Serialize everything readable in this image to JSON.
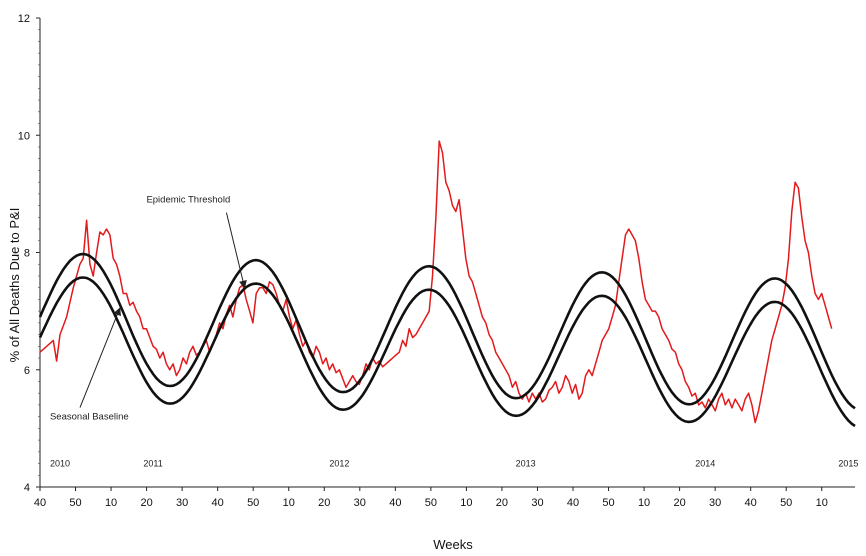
{
  "chart_data": {
    "type": "line",
    "xlabel": "Weeks",
    "ylabel": "% of All Deaths Due to P&I",
    "ylim": [
      4,
      12
    ],
    "y_ticks": [
      "4",
      "6",
      "8",
      "10",
      "12"
    ],
    "x_ticks": [
      "40",
      "50",
      "10",
      "20",
      "30",
      "40",
      "50",
      "10",
      "20",
      "30",
      "40",
      "50",
      "10",
      "20",
      "30",
      "40",
      "50",
      "10",
      "20",
      "30",
      "40",
      "50",
      "10"
    ],
    "x_range": [
      0,
      245
    ],
    "year_labels": [
      {
        "label": "2010",
        "x": 6
      },
      {
        "label": "2011",
        "x": 34
      },
      {
        "label": "2012",
        "x": 90
      },
      {
        "label": "2013",
        "x": 146
      },
      {
        "label": "2014",
        "x": 200
      },
      {
        "label": "2015",
        "x": 243
      }
    ],
    "annotations": [
      {
        "text": "Epidemic Threshold",
        "x": 32,
        "y": 8.85,
        "arrow_to": [
          61.5,
          7.4
        ]
      },
      {
        "text": "Seasonal Baseline",
        "x": 3,
        "y": 5.15,
        "arrow_to": [
          24,
          7.05
        ]
      }
    ],
    "series": [
      {
        "role": "observed",
        "color": "#e31a1c",
        "points": [
          [
            0,
            6.3
          ],
          [
            2,
            6.4
          ],
          [
            4,
            6.5
          ],
          [
            5,
            6.15
          ],
          [
            6,
            6.6
          ],
          [
            8,
            6.9
          ],
          [
            10,
            7.4
          ],
          [
            12,
            7.8
          ],
          [
            13,
            7.9
          ],
          [
            14,
            8.55
          ],
          [
            15,
            7.8
          ],
          [
            16,
            7.6
          ],
          [
            17,
            8.0
          ],
          [
            18,
            8.35
          ],
          [
            19,
            8.3
          ],
          [
            20,
            8.4
          ],
          [
            21,
            8.3
          ],
          [
            22,
            7.9
          ],
          [
            23,
            7.8
          ],
          [
            24,
            7.6
          ],
          [
            25,
            7.3
          ],
          [
            26,
            7.3
          ],
          [
            27,
            7.1
          ],
          [
            28,
            7.15
          ],
          [
            29,
            7.0
          ],
          [
            30,
            6.9
          ],
          [
            31,
            6.7
          ],
          [
            32,
            6.7
          ],
          [
            33,
            6.55
          ],
          [
            34,
            6.4
          ],
          [
            35,
            6.35
          ],
          [
            36,
            6.2
          ],
          [
            37,
            6.3
          ],
          [
            38,
            6.1
          ],
          [
            39,
            6.0
          ],
          [
            40,
            6.1
          ],
          [
            41,
            5.9
          ],
          [
            42,
            6.0
          ],
          [
            43,
            6.2
          ],
          [
            44,
            6.1
          ],
          [
            45,
            6.3
          ],
          [
            46,
            6.4
          ],
          [
            47,
            6.25
          ],
          [
            48,
            6.3
          ],
          [
            49,
            6.4
          ],
          [
            50,
            6.5
          ],
          [
            51,
            6.3
          ],
          [
            52,
            6.45
          ],
          [
            53,
            6.6
          ],
          [
            54,
            6.8
          ],
          [
            55,
            6.7
          ],
          [
            56,
            6.95
          ],
          [
            57,
            7.1
          ],
          [
            58,
            6.9
          ],
          [
            59,
            7.2
          ],
          [
            60,
            7.4
          ],
          [
            61,
            7.45
          ],
          [
            62,
            7.2
          ],
          [
            63,
            7.0
          ],
          [
            64,
            6.8
          ],
          [
            65,
            7.3
          ],
          [
            66,
            7.4
          ],
          [
            67,
            7.4
          ],
          [
            68,
            7.3
          ],
          [
            69,
            7.5
          ],
          [
            70,
            7.45
          ],
          [
            71,
            7.3
          ],
          [
            72,
            7.1
          ],
          [
            73,
            7.0
          ],
          [
            74,
            7.2
          ],
          [
            75,
            6.9
          ],
          [
            76,
            6.7
          ],
          [
            77,
            6.85
          ],
          [
            78,
            6.6
          ],
          [
            79,
            6.4
          ],
          [
            80,
            6.5
          ],
          [
            81,
            6.3
          ],
          [
            82,
            6.2
          ],
          [
            83,
            6.4
          ],
          [
            84,
            6.3
          ],
          [
            85,
            6.1
          ],
          [
            86,
            6.2
          ],
          [
            87,
            6.0
          ],
          [
            88,
            6.1
          ],
          [
            89,
            5.95
          ],
          [
            90,
            6.0
          ],
          [
            91,
            5.85
          ],
          [
            92,
            5.7
          ],
          [
            93,
            5.8
          ],
          [
            94,
            5.9
          ],
          [
            95,
            5.8
          ],
          [
            96,
            5.75
          ],
          [
            97,
            5.9
          ],
          [
            98,
            6.1
          ],
          [
            99,
            6.0
          ],
          [
            100,
            6.2
          ],
          [
            101,
            6.1
          ],
          [
            102,
            6.15
          ],
          [
            103,
            6.05
          ],
          [
            104,
            6.1
          ],
          [
            105,
            6.15
          ],
          [
            106,
            6.2
          ],
          [
            107,
            6.25
          ],
          [
            108,
            6.3
          ],
          [
            109,
            6.5
          ],
          [
            110,
            6.4
          ],
          [
            111,
            6.7
          ],
          [
            112,
            6.55
          ],
          [
            113,
            6.6
          ],
          [
            114,
            6.7
          ],
          [
            115,
            6.8
          ],
          [
            116,
            6.9
          ],
          [
            117,
            7.0
          ],
          [
            118,
            7.6
          ],
          [
            119,
            8.6
          ],
          [
            120,
            9.9
          ],
          [
            121,
            9.7
          ],
          [
            122,
            9.2
          ],
          [
            123,
            9.05
          ],
          [
            124,
            8.8
          ],
          [
            125,
            8.7
          ],
          [
            126,
            8.9
          ],
          [
            127,
            8.4
          ],
          [
            128,
            7.9
          ],
          [
            129,
            7.6
          ],
          [
            130,
            7.5
          ],
          [
            131,
            7.3
          ],
          [
            132,
            7.1
          ],
          [
            133,
            6.9
          ],
          [
            134,
            6.8
          ],
          [
            135,
            6.6
          ],
          [
            136,
            6.5
          ],
          [
            137,
            6.3
          ],
          [
            138,
            6.2
          ],
          [
            139,
            6.1
          ],
          [
            140,
            6.0
          ],
          [
            141,
            5.9
          ],
          [
            142,
            5.7
          ],
          [
            143,
            5.8
          ],
          [
            144,
            5.6
          ],
          [
            145,
            5.5
          ],
          [
            146,
            5.6
          ],
          [
            147,
            5.45
          ],
          [
            148,
            5.6
          ],
          [
            149,
            5.5
          ],
          [
            150,
            5.6
          ],
          [
            151,
            5.45
          ],
          [
            152,
            5.5
          ],
          [
            153,
            5.65
          ],
          [
            154,
            5.7
          ],
          [
            155,
            5.8
          ],
          [
            156,
            5.6
          ],
          [
            157,
            5.7
          ],
          [
            158,
            5.9
          ],
          [
            159,
            5.8
          ],
          [
            160,
            5.6
          ],
          [
            161,
            5.75
          ],
          [
            162,
            5.5
          ],
          [
            163,
            5.6
          ],
          [
            164,
            5.9
          ],
          [
            165,
            6.0
          ],
          [
            166,
            5.9
          ],
          [
            167,
            6.1
          ],
          [
            168,
            6.3
          ],
          [
            169,
            6.5
          ],
          [
            170,
            6.6
          ],
          [
            171,
            6.7
          ],
          [
            172,
            6.9
          ],
          [
            173,
            7.1
          ],
          [
            174,
            7.5
          ],
          [
            175,
            7.9
          ],
          [
            176,
            8.3
          ],
          [
            177,
            8.4
          ],
          [
            178,
            8.3
          ],
          [
            179,
            8.2
          ],
          [
            180,
            7.9
          ],
          [
            181,
            7.5
          ],
          [
            182,
            7.2
          ],
          [
            183,
            7.1
          ],
          [
            184,
            7.0
          ],
          [
            185,
            7.0
          ],
          [
            186,
            6.9
          ],
          [
            187,
            6.7
          ],
          [
            188,
            6.6
          ],
          [
            189,
            6.5
          ],
          [
            190,
            6.35
          ],
          [
            191,
            6.3
          ],
          [
            192,
            6.1
          ],
          [
            193,
            6.0
          ],
          [
            194,
            5.8
          ],
          [
            195,
            5.7
          ],
          [
            196,
            5.55
          ],
          [
            197,
            5.6
          ],
          [
            198,
            5.4
          ],
          [
            199,
            5.45
          ],
          [
            200,
            5.35
          ],
          [
            201,
            5.5
          ],
          [
            202,
            5.4
          ],
          [
            203,
            5.3
          ],
          [
            204,
            5.5
          ],
          [
            205,
            5.6
          ],
          [
            206,
            5.4
          ],
          [
            207,
            5.5
          ],
          [
            208,
            5.35
          ],
          [
            209,
            5.5
          ],
          [
            210,
            5.4
          ],
          [
            211,
            5.3
          ],
          [
            212,
            5.5
          ],
          [
            213,
            5.6
          ],
          [
            214,
            5.4
          ],
          [
            215,
            5.1
          ],
          [
            216,
            5.3
          ],
          [
            217,
            5.6
          ],
          [
            218,
            5.9
          ],
          [
            219,
            6.2
          ],
          [
            220,
            6.5
          ],
          [
            221,
            6.7
          ],
          [
            222,
            6.9
          ],
          [
            223,
            7.1
          ],
          [
            224,
            7.4
          ],
          [
            225,
            7.9
          ],
          [
            226,
            8.7
          ],
          [
            227,
            9.2
          ],
          [
            228,
            9.1
          ],
          [
            229,
            8.6
          ],
          [
            230,
            8.2
          ],
          [
            231,
            8.0
          ],
          [
            232,
            7.6
          ],
          [
            233,
            7.3
          ],
          [
            234,
            7.2
          ],
          [
            235,
            7.3
          ],
          [
            236,
            7.1
          ],
          [
            237,
            6.9
          ],
          [
            238,
            6.7
          ]
        ]
      },
      {
        "role": "threshold",
        "color": "#111111",
        "mean": 6.9,
        "amplitude": 1.1,
        "period": 52,
        "peak_x": 13,
        "trend": -0.002
      },
      {
        "role": "baseline",
        "color": "#111111",
        "mean": 6.55,
        "amplitude": 1.05,
        "period": 52,
        "peak_x": 13,
        "trend": -0.002
      }
    ]
  }
}
